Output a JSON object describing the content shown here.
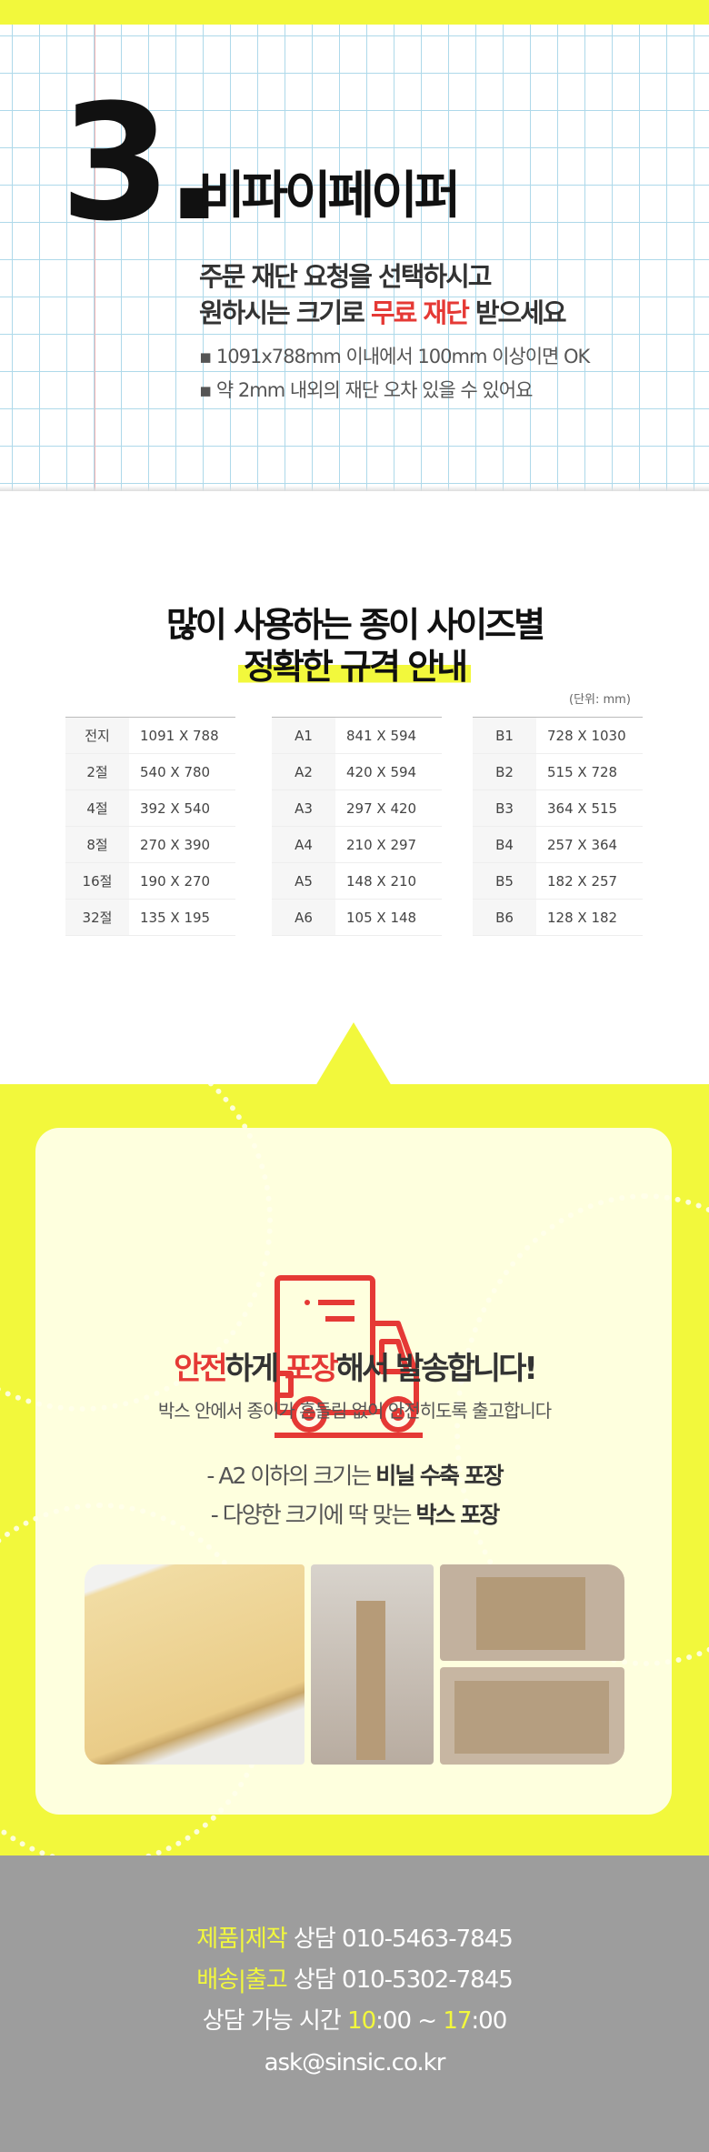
{
  "section3": {
    "number": "3.",
    "title": "비파이페이퍼",
    "subtitle_line1": "주문 재단 요청을 선택하시고",
    "subtitle_line2_a": "원하시는 크기로 ",
    "subtitle_line2_highlight": "무료 재단",
    "subtitle_line2_b": " 받으세요",
    "bullets": [
      "▪ 1091x788mm 이내에서 100mm 이상이면 OK",
      "▪  약 2mm 내외의 재단 오차 있을 수 있어요"
    ]
  },
  "sizes": {
    "title_line1": "많이 사용하는 종이 사이즈별",
    "title_line2": "정확한 규격 안내",
    "unit": "(단위: mm)",
    "tables": [
      [
        [
          "전지",
          "1091 X 788"
        ],
        [
          "2절",
          "540 X 780"
        ],
        [
          "4절",
          "392 X 540"
        ],
        [
          "8절",
          "270 X 390"
        ],
        [
          "16절",
          "190 X 270"
        ],
        [
          "32절",
          "135 X 195"
        ]
      ],
      [
        [
          "A1",
          "841 X 594"
        ],
        [
          "A2",
          "420 X 594"
        ],
        [
          "A3",
          "297 X 420"
        ],
        [
          "A4",
          "210 X 297"
        ],
        [
          "A5",
          "148 X 210"
        ],
        [
          "A6",
          "105 X 148"
        ]
      ],
      [
        [
          "B1",
          "728 X 1030"
        ],
        [
          "B2",
          "515 X 728"
        ],
        [
          "B3",
          "364 X 515"
        ],
        [
          "B4",
          "257 X 364"
        ],
        [
          "B5",
          "182 X 257"
        ],
        [
          "B6",
          "128 X 182"
        ]
      ]
    ]
  },
  "shipping": {
    "icon": "delivery-truck-icon",
    "h_red1": "안전",
    "h1": "하게 ",
    "h_red2": "포장",
    "h2": "해서 발송합니다!",
    "desc": "박스 안에서 종이가 흔들림 없이 안전히도록 출고합니다",
    "line1_a": "- A2 이하의 크기는 ",
    "line1_b": "비닐 수축 포장",
    "line2_a": "- 다양한 크기에 딱 맞는 ",
    "line2_b": "박스 포장"
  },
  "footer": {
    "l1_label": "제품|제작",
    "l1_text": " 상담 010-5463-7845",
    "l2_label": "배송|출고",
    "l2_text": " 상담 010-5302-7845",
    "l3_a": "상담 가능 시간 ",
    "l3_h1": "10",
    "l3_b": ":00 ~ ",
    "l3_h2": "17",
    "l3_c": ":00",
    "email": "ask@sinsic.co.kr"
  },
  "colors": {
    "accent_yellow": "#f2f83c",
    "accent_red": "#e53935",
    "footer_gray": "#9d9d9d"
  }
}
